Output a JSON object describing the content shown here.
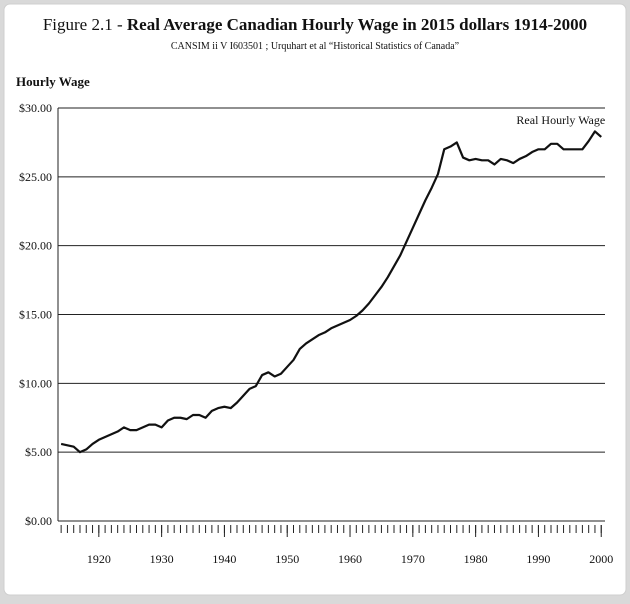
{
  "chart_data": {
    "type": "line",
    "figure_label": "Figure 2.1 -",
    "title": "Real Average Canadian Hourly Wage in 2015 dollars 1914-2000",
    "subtitle": "CANSIM ii V I603501 ; Urquhart et al “Historical Statistics of Canada”",
    "y_label": "Hourly Wage",
    "x": [
      1914,
      1915,
      1916,
      1917,
      1918,
      1919,
      1920,
      1921,
      1922,
      1923,
      1924,
      1925,
      1926,
      1927,
      1928,
      1929,
      1930,
      1931,
      1932,
      1933,
      1934,
      1935,
      1936,
      1937,
      1938,
      1939,
      1940,
      1941,
      1942,
      1943,
      1944,
      1945,
      1946,
      1947,
      1948,
      1949,
      1950,
      1951,
      1952,
      1953,
      1954,
      1955,
      1956,
      1957,
      1958,
      1959,
      1960,
      1961,
      1962,
      1963,
      1964,
      1965,
      1966,
      1967,
      1968,
      1969,
      1970,
      1971,
      1972,
      1973,
      1974,
      1975,
      1976,
      1977,
      1978,
      1979,
      1980,
      1981,
      1982,
      1983,
      1984,
      1985,
      1986,
      1987,
      1988,
      1989,
      1990,
      1991,
      1992,
      1993,
      1994,
      1995,
      1996,
      1997,
      1998,
      1999,
      2000
    ],
    "series": [
      {
        "name": "Real Hourly Wage",
        "color": "#111111",
        "values": [
          5.6,
          5.5,
          5.4,
          5.0,
          5.2,
          5.6,
          5.9,
          6.1,
          6.3,
          6.5,
          6.8,
          6.6,
          6.6,
          6.8,
          7.0,
          7.0,
          6.8,
          7.3,
          7.5,
          7.5,
          7.4,
          7.7,
          7.7,
          7.5,
          8.0,
          8.2,
          8.3,
          8.2,
          8.6,
          9.1,
          9.6,
          9.8,
          10.6,
          10.8,
          10.5,
          10.7,
          11.2,
          11.7,
          12.5,
          12.9,
          13.2,
          13.5,
          13.7,
          14.0,
          14.2,
          14.4,
          14.6,
          14.9,
          15.3,
          15.8,
          16.4,
          17.0,
          17.7,
          18.5,
          19.3,
          20.3,
          21.3,
          22.3,
          23.3,
          24.2,
          25.2,
          27.0,
          27.2,
          27.5,
          26.4,
          26.2,
          26.3,
          26.2,
          26.2,
          25.9,
          26.3,
          26.2,
          26.0,
          26.3,
          26.5,
          26.8,
          27.0,
          27.0,
          27.4,
          27.4,
          27.0,
          27.0,
          27.0,
          27.0,
          27.6,
          28.3,
          27.9
        ]
      }
    ],
    "xlim": [
      1913.5,
      2000.6
    ],
    "ylim": [
      0,
      30
    ],
    "xticks": [
      1920,
      1930,
      1940,
      1950,
      1960,
      1970,
      1980,
      1990,
      2000
    ],
    "yticks": [
      {
        "value": 0,
        "label": "$0.00"
      },
      {
        "value": 5,
        "label": "$5.00"
      },
      {
        "value": 10,
        "label": "$10.00"
      },
      {
        "value": 15,
        "label": "$15.00"
      },
      {
        "value": 20,
        "label": "$20.00"
      },
      {
        "value": 25,
        "label": "$25.00"
      },
      {
        "value": 30,
        "label": "$30.00"
      }
    ],
    "grid": true
  }
}
